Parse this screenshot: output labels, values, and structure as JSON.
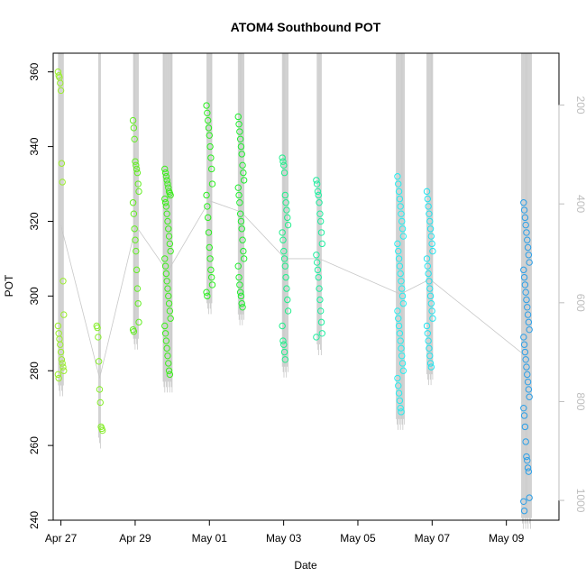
{
  "chart_data": {
    "type": "scatter",
    "title": "ATOM4 Southbound POT",
    "xlabel": "Date",
    "ylabel": "POT",
    "xlim": [
      "2020-04-26T19:00",
      "2020-05-10T10:00"
    ],
    "ylim": [
      240,
      365
    ],
    "x_ticks": [
      "Apr 27",
      "Apr 29",
      "May 01",
      "May 03",
      "May 05",
      "May 07",
      "May 09"
    ],
    "x_tick_dates": [
      "2020-04-27",
      "2020-04-29",
      "2020-05-01",
      "2020-05-03",
      "2020-05-05",
      "2020-05-07",
      "2020-05-09"
    ],
    "y_ticks": [
      240,
      260,
      280,
      300,
      320,
      340,
      360
    ],
    "right_axis": {
      "label": "",
      "ticks": [
        200,
        400,
        600,
        800,
        1000
      ],
      "ylim": [
        1040,
        95
      ],
      "color": "#bdbdbd"
    },
    "grid": false,
    "legend": "none",
    "point_style": "open-circle",
    "track_color": "#c8c8c8",
    "groups": [
      {
        "date": "2020-04-27T00:00",
        "values": [
          360,
          359,
          358.5,
          357,
          355,
          335.5,
          330.5,
          304,
          295,
          292,
          290,
          288.5,
          287,
          285,
          283,
          282,
          281,
          280,
          279,
          278
        ],
        "color": "#9aee2c"
      },
      {
        "date": "2020-04-28T01:00",
        "values": [
          292,
          291.5,
          289,
          282.5,
          275,
          271.5,
          265,
          264.5,
          264
        ],
        "color": "#86ee2a"
      },
      {
        "date": "2020-04-29T00:30",
        "values": [
          347,
          345,
          342,
          336,
          335,
          334,
          333,
          330,
          328,
          325,
          322,
          318,
          315,
          312,
          307,
          302,
          298,
          293,
          291,
          290.5
        ],
        "color": "#63ee23"
      },
      {
        "date": "2020-04-29T21:00",
        "values": [
          334,
          333,
          332,
          331,
          330,
          329,
          328,
          327.5,
          327,
          326,
          325,
          324,
          322,
          320,
          318,
          316,
          314,
          312,
          310,
          308,
          306,
          304,
          302,
          300,
          298,
          296,
          294,
          292,
          290,
          288,
          286,
          284,
          282,
          280,
          279
        ],
        "color": "#3cee1b"
      },
      {
        "date": "2020-05-01T00:00",
        "values": [
          351,
          349,
          347,
          345,
          343,
          340,
          337,
          334,
          330,
          327,
          324,
          321,
          317,
          313,
          310,
          307,
          305,
          303,
          301,
          300
        ],
        "color": "#2aee1e"
      },
      {
        "date": "2020-05-01T20:30",
        "values": [
          348,
          346,
          344,
          342,
          340,
          338,
          335,
          333,
          331,
          329,
          327,
          325,
          322,
          320,
          318,
          315,
          312,
          310,
          308,
          305,
          303,
          301,
          300,
          298,
          297
        ],
        "color": "#1fee2e"
      },
      {
        "date": "2020-05-03T01:00",
        "values": [
          337,
          336,
          335,
          333,
          327,
          325,
          323,
          321,
          319,
          317,
          315,
          312,
          310,
          308,
          305,
          302,
          299,
          296,
          292,
          288,
          287,
          285,
          283
        ],
        "color": "#1fee8a"
      },
      {
        "date": "2020-05-03T23:00",
        "values": [
          331,
          330,
          328,
          327,
          325,
          322,
          320,
          317,
          314,
          311,
          309,
          307,
          305,
          302,
          299,
          296,
          293,
          290,
          289
        ],
        "color": "#1fee9f"
      },
      {
        "date": "2020-05-06T03:30",
        "values": [
          332,
          330,
          328,
          326,
          324,
          322,
          320,
          318,
          316,
          314,
          312,
          310,
          308,
          306,
          304,
          302,
          300,
          298,
          296,
          294,
          292,
          290,
          288,
          286,
          284,
          282,
          280,
          278,
          276,
          274,
          272,
          270,
          269
        ],
        "color": "#23eef0"
      },
      {
        "date": "2020-05-06T22:30",
        "values": [
          328,
          326,
          324,
          322,
          320,
          318,
          316,
          314,
          312,
          310,
          308,
          306,
          304,
          302,
          300,
          298,
          296,
          294,
          292,
          290,
          288,
          286,
          284,
          282,
          281
        ],
        "color": "#22e3ee"
      },
      {
        "date": "2020-05-09T13:00",
        "values": [
          325,
          323,
          321,
          319,
          317,
          315,
          313,
          311,
          309,
          307,
          305,
          303,
          301,
          299,
          297,
          295,
          293,
          291,
          289,
          287,
          285,
          283,
          281,
          279,
          277,
          275,
          273,
          270,
          268,
          265,
          261,
          257,
          256,
          254,
          253,
          246,
          245,
          242.5
        ],
        "color": "#2a9fe8"
      }
    ]
  }
}
